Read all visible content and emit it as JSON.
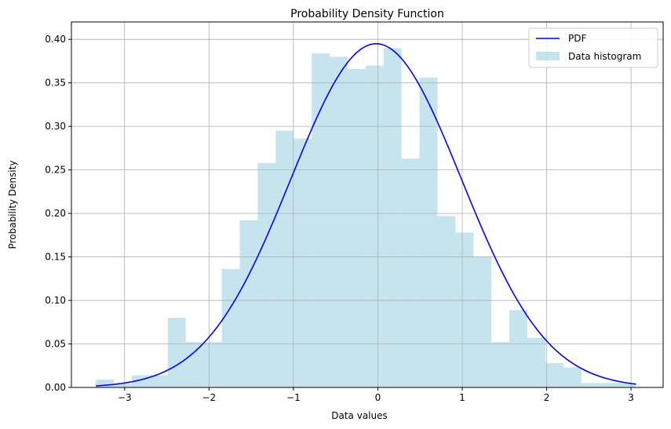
{
  "chart_data": {
    "type": "bar",
    "title": "Probability Density Function",
    "xlabel": "Data values",
    "ylabel": "Probability Density",
    "xlim": [
      -3.63,
      3.38
    ],
    "ylim": [
      0,
      0.42
    ],
    "x_ticks": [
      -3,
      -2,
      -1,
      0,
      1,
      2,
      3
    ],
    "x_tick_labels": [
      "−3",
      "−2",
      "−1",
      "0",
      "1",
      "2",
      "3"
    ],
    "y_ticks": [
      0,
      0.05,
      0.1,
      0.15,
      0.2,
      0.25,
      0.3,
      0.35,
      0.4
    ],
    "y_tick_labels": [
      "0.00",
      "0.05",
      "0.10",
      "0.15",
      "0.20",
      "0.25",
      "0.30",
      "0.35",
      "0.40"
    ],
    "grid": true,
    "legend_position": "top-right",
    "histogram": {
      "name": "Data histogram",
      "color": "#add8e6",
      "bin_start": -3.34,
      "bin_width": 0.213,
      "density": [
        0.009,
        0.004,
        0.014,
        0.014,
        0.08,
        0.052,
        0.052,
        0.136,
        0.192,
        0.258,
        0.295,
        0.286,
        0.384,
        0.38,
        0.366,
        0.37,
        0.39,
        0.263,
        0.356,
        0.197,
        0.178,
        0.15,
        0.052,
        0.089,
        0.057,
        0.028,
        0.023,
        0.005,
        0.005,
        0.005
      ]
    },
    "pdf": {
      "name": "PDF",
      "color": "#0000ff",
      "x_start": -3.34,
      "x_end": 3.06,
      "mean": -0.02,
      "std": 1.01
    }
  }
}
